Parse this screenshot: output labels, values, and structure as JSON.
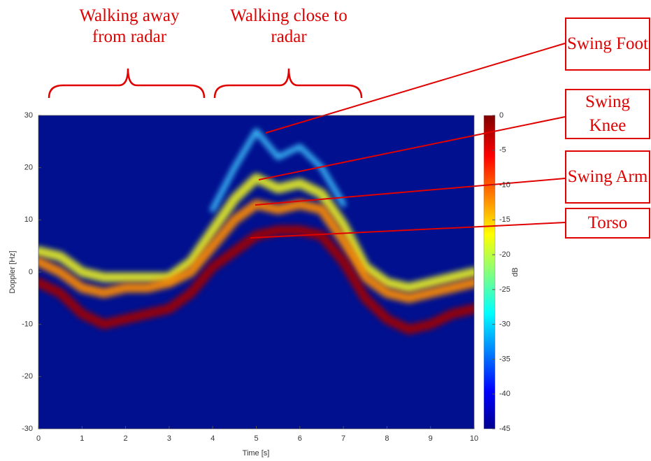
{
  "chart_data": {
    "type": "spectrogram",
    "xlabel": "Time [s]",
    "ylabel": "Doppler [Hz]",
    "x": [
      0,
      0.5,
      1,
      1.5,
      2,
      2.5,
      3,
      3.5,
      4,
      4.5,
      5,
      5.5,
      6,
      6.5,
      7,
      7.5,
      8,
      8.5,
      9,
      9.5,
      10
    ],
    "series": [
      {
        "name": "Swing Foot",
        "color": "#40c8ff",
        "values": [
          null,
          null,
          null,
          null,
          null,
          null,
          null,
          null,
          12,
          20,
          27,
          22,
          24,
          20,
          13,
          null,
          null,
          null,
          null,
          null,
          null
        ]
      },
      {
        "name": "Swing Knee",
        "color": "#e8f020",
        "values": [
          4,
          3,
          0,
          -1,
          -1,
          -1,
          -1,
          2,
          8,
          14,
          18,
          16,
          17,
          15,
          9,
          1,
          -2,
          -3,
          -2,
          -1,
          0
        ]
      },
      {
        "name": "Swing Arm",
        "color": "#ff8c00",
        "values": [
          2,
          0,
          -3,
          -4,
          -3,
          -3,
          -2,
          0,
          5,
          10,
          13,
          12,
          13,
          12,
          6,
          -1,
          -4,
          -5,
          -4,
          -3,
          -2
        ]
      },
      {
        "name": "Torso",
        "color": "#a00000",
        "values": [
          -2,
          -4,
          -8,
          -10,
          -9,
          -8,
          -7,
          -4,
          1,
          4,
          7,
          8,
          8,
          7,
          2,
          -5,
          -9,
          -11,
          -10,
          -8,
          -7
        ]
      }
    ],
    "xlim": [
      0,
      10
    ],
    "xticks": [
      0,
      1,
      2,
      3,
      4,
      5,
      6,
      7,
      8,
      9,
      10
    ],
    "ylim": [
      -30,
      30
    ],
    "yticks": [
      -30,
      -20,
      -10,
      0,
      10,
      20,
      30
    ],
    "zlim": [
      -45,
      0
    ],
    "zticks": [
      0,
      -5,
      -10,
      -15,
      -20,
      -25,
      -30,
      -35,
      -40,
      -45
    ],
    "zlabel": "dB",
    "background": "#00108f",
    "annotations": [
      "Walking away from radar",
      "Walking close to radar"
    ]
  }
}
